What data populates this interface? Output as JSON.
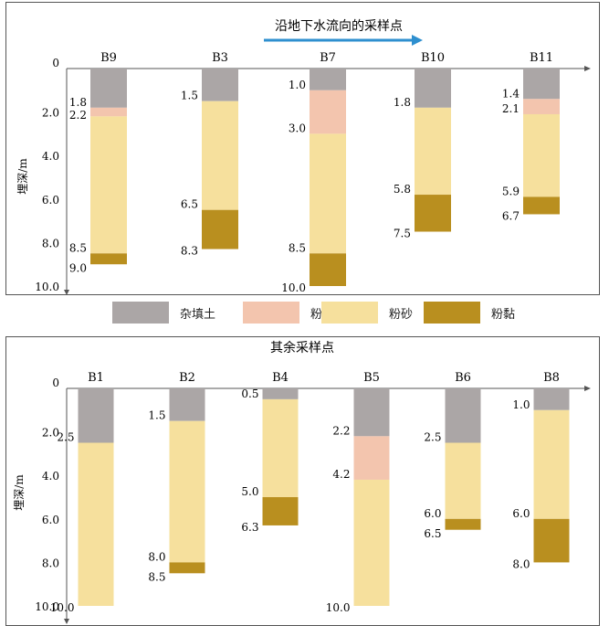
{
  "colors": {
    "杂填土": "#aba6a6",
    "粉土": "#f3c5ae",
    "粉砂": "#f6e09d",
    "粉黏": "#b98f1f",
    "arrow": "#2e8fcf"
  },
  "legend": [
    {
      "name": "杂填土"
    },
    {
      "name": "粉土"
    },
    {
      "name": "粉砂"
    },
    {
      "name": "粉黏"
    }
  ],
  "chart_data": [
    {
      "type": "stacked-column",
      "title": "沿地下水流向的采样点",
      "ylabel": "埋深/m",
      "ylim": [
        0,
        10
      ],
      "yticks": [
        "0",
        "2.0",
        "4.0",
        "6.0",
        "8.0",
        "10.0"
      ],
      "bores": [
        {
          "name": "B9",
          "layers": [
            {
              "soil": "杂填土",
              "top": 0,
              "bottom": 1.8
            },
            {
              "soil": "粉土",
              "top": 1.8,
              "bottom": 2.2
            },
            {
              "soil": "粉砂",
              "top": 2.2,
              "bottom": 8.5
            },
            {
              "soil": "粉黏",
              "top": 8.5,
              "bottom": 9.0
            }
          ],
          "labels": [
            "1.8",
            "2.2",
            "8.5",
            "9.0"
          ]
        },
        {
          "name": "B3",
          "layers": [
            {
              "soil": "杂填土",
              "top": 0,
              "bottom": 1.5
            },
            {
              "soil": "粉砂",
              "top": 1.5,
              "bottom": 6.5
            },
            {
              "soil": "粉黏",
              "top": 6.5,
              "bottom": 8.3
            }
          ],
          "labels": [
            "1.5",
            "6.5",
            "8.3"
          ]
        },
        {
          "name": "B7",
          "layers": [
            {
              "soil": "杂填土",
              "top": 0,
              "bottom": 1.0
            },
            {
              "soil": "粉土",
              "top": 1.0,
              "bottom": 3.0
            },
            {
              "soil": "粉砂",
              "top": 3.0,
              "bottom": 8.5
            },
            {
              "soil": "粉黏",
              "top": 8.5,
              "bottom": 10.0
            }
          ],
          "labels": [
            "1.0",
            "3.0",
            "8.5",
            "10.0"
          ]
        },
        {
          "name": "B10",
          "layers": [
            {
              "soil": "杂填土",
              "top": 0,
              "bottom": 1.8
            },
            {
              "soil": "粉砂",
              "top": 1.8,
              "bottom": 5.8
            },
            {
              "soil": "粉黏",
              "top": 5.8,
              "bottom": 7.5
            }
          ],
          "labels": [
            "1.8",
            "5.8",
            "7.5"
          ]
        },
        {
          "name": "B11",
          "layers": [
            {
              "soil": "杂填土",
              "top": 0,
              "bottom": 1.4
            },
            {
              "soil": "粉土",
              "top": 1.4,
              "bottom": 2.1
            },
            {
              "soil": "粉砂",
              "top": 2.1,
              "bottom": 5.9
            },
            {
              "soil": "粉黏",
              "top": 5.9,
              "bottom": 6.7
            }
          ],
          "labels": [
            "1.4",
            "2.1",
            "5.9",
            "6.7"
          ]
        }
      ]
    },
    {
      "type": "stacked-column",
      "title": "其余采样点",
      "ylabel": "埋深/m",
      "ylim": [
        0,
        10
      ],
      "yticks": [
        "0",
        "2.0",
        "4.0",
        "6.0",
        "8.0",
        "10.0"
      ],
      "bores": [
        {
          "name": "B1",
          "layers": [
            {
              "soil": "杂填土",
              "top": 0,
              "bottom": 2.5
            },
            {
              "soil": "粉砂",
              "top": 2.5,
              "bottom": 10.0
            }
          ],
          "labels": [
            "2.5",
            "10.0"
          ]
        },
        {
          "name": "B2",
          "layers": [
            {
              "soil": "杂填土",
              "top": 0,
              "bottom": 1.5
            },
            {
              "soil": "粉砂",
              "top": 1.5,
              "bottom": 8.0
            },
            {
              "soil": "粉黏",
              "top": 8.0,
              "bottom": 8.5
            }
          ],
          "labels": [
            "1.5",
            "8.0",
            "8.5"
          ]
        },
        {
          "name": "B4",
          "layers": [
            {
              "soil": "杂填土",
              "top": 0,
              "bottom": 0.5
            },
            {
              "soil": "粉砂",
              "top": 0.5,
              "bottom": 5.0
            },
            {
              "soil": "粉黏",
              "top": 5.0,
              "bottom": 6.3
            }
          ],
          "labels": [
            "0.5",
            "5.0",
            "6.3"
          ]
        },
        {
          "name": "B5",
          "layers": [
            {
              "soil": "杂填土",
              "top": 0,
              "bottom": 2.2
            },
            {
              "soil": "粉土",
              "top": 2.2,
              "bottom": 4.2
            },
            {
              "soil": "粉砂",
              "top": 4.2,
              "bottom": 10.0
            }
          ],
          "labels": [
            "2.2",
            "4.2",
            "10.0"
          ]
        },
        {
          "name": "B6",
          "layers": [
            {
              "soil": "杂填土",
              "top": 0,
              "bottom": 2.5
            },
            {
              "soil": "粉砂",
              "top": 2.5,
              "bottom": 6.0
            },
            {
              "soil": "粉黏",
              "top": 6.0,
              "bottom": 6.5
            }
          ],
          "labels": [
            "2.5",
            "6.0",
            "6.5"
          ]
        },
        {
          "name": "B8",
          "layers": [
            {
              "soil": "杂填土",
              "top": 0,
              "bottom": 1.0
            },
            {
              "soil": "粉砂",
              "top": 1.0,
              "bottom": 6.0
            },
            {
              "soil": "粉黏",
              "top": 6.0,
              "bottom": 8.0
            }
          ],
          "labels": [
            "1.0",
            "6.0",
            "8.0"
          ]
        }
      ]
    }
  ]
}
